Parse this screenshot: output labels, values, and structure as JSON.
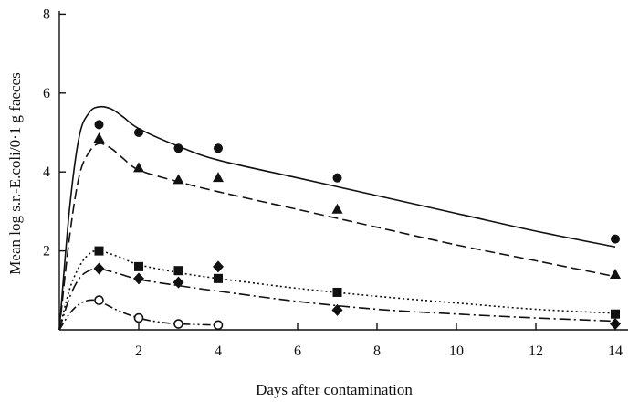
{
  "chart_data": {
    "type": "scatter",
    "title": "",
    "xlabel": "Days after contamination",
    "ylabel": "Mean log s.r.-E.coli/0·1 g faeces",
    "xlim": [
      0,
      14.5
    ],
    "ylim": [
      0,
      8
    ],
    "xticks": [
      2,
      4,
      6,
      8,
      10,
      12,
      14
    ],
    "yticks": [
      2,
      4,
      6,
      8
    ],
    "grid": false,
    "legend": "none",
    "series": [
      {
        "marker": "filled-circle",
        "line_style": "solid",
        "points": [
          [
            1,
            5.2
          ],
          [
            2,
            5.0
          ],
          [
            3,
            4.6
          ],
          [
            4,
            4.6
          ],
          [
            7,
            3.85
          ],
          [
            14,
            2.3
          ]
        ],
        "fit_curve": [
          [
            0,
            0
          ],
          [
            0.25,
            3.0
          ],
          [
            0.5,
            4.9
          ],
          [
            0.75,
            5.5
          ],
          [
            1,
            5.65
          ],
          [
            1.3,
            5.6
          ],
          [
            1.6,
            5.4
          ],
          [
            2,
            5.1
          ],
          [
            3,
            4.65
          ],
          [
            4,
            4.3
          ],
          [
            6,
            3.85
          ],
          [
            8,
            3.4
          ],
          [
            10,
            2.95
          ],
          [
            12,
            2.5
          ],
          [
            14,
            2.1
          ]
        ]
      },
      {
        "marker": "filled-triangle",
        "line_style": "dashed",
        "points": [
          [
            1,
            4.85
          ],
          [
            2,
            4.1
          ],
          [
            3,
            3.8
          ],
          [
            4,
            3.85
          ],
          [
            7,
            3.05
          ],
          [
            14,
            1.4
          ]
        ],
        "fit_curve": [
          [
            0,
            0
          ],
          [
            0.25,
            2.3
          ],
          [
            0.5,
            3.9
          ],
          [
            0.75,
            4.5
          ],
          [
            1,
            4.72
          ],
          [
            1.3,
            4.6
          ],
          [
            1.6,
            4.35
          ],
          [
            2,
            4.05
          ],
          [
            3,
            3.75
          ],
          [
            4,
            3.5
          ],
          [
            6,
            3.05
          ],
          [
            8,
            2.6
          ],
          [
            10,
            2.15
          ],
          [
            12,
            1.75
          ],
          [
            14,
            1.35
          ]
        ]
      },
      {
        "marker": "filled-square",
        "line_style": "dotted",
        "points": [
          [
            1,
            2.0
          ],
          [
            2,
            1.6
          ],
          [
            3,
            1.5
          ],
          [
            4,
            1.3
          ],
          [
            7,
            0.95
          ],
          [
            14,
            0.4
          ]
        ],
        "fit_curve": [
          [
            0,
            0
          ],
          [
            0.25,
            1.0
          ],
          [
            0.5,
            1.6
          ],
          [
            0.75,
            1.92
          ],
          [
            1,
            2.0
          ],
          [
            1.5,
            1.85
          ],
          [
            2,
            1.65
          ],
          [
            3,
            1.45
          ],
          [
            4,
            1.3
          ],
          [
            6,
            1.05
          ],
          [
            8,
            0.85
          ],
          [
            10,
            0.68
          ],
          [
            12,
            0.52
          ],
          [
            14,
            0.42
          ]
        ]
      },
      {
        "marker": "filled-diamond",
        "line_style": "dash-dot",
        "points": [
          [
            1,
            1.55
          ],
          [
            2,
            1.3
          ],
          [
            3,
            1.2
          ],
          [
            4,
            1.6
          ],
          [
            7,
            0.5
          ],
          [
            14,
            0.15
          ]
        ],
        "fit_curve": [
          [
            0,
            0
          ],
          [
            0.25,
            0.8
          ],
          [
            0.5,
            1.3
          ],
          [
            0.75,
            1.5
          ],
          [
            1,
            1.55
          ],
          [
            1.5,
            1.42
          ],
          [
            2,
            1.28
          ],
          [
            3,
            1.12
          ],
          [
            4,
            0.98
          ],
          [
            6,
            0.72
          ],
          [
            8,
            0.52
          ],
          [
            10,
            0.4
          ],
          [
            12,
            0.3
          ],
          [
            14,
            0.22
          ]
        ]
      },
      {
        "marker": "open-circle",
        "line_style": "dash-dot-dot",
        "points": [
          [
            1,
            0.75
          ],
          [
            2,
            0.3
          ],
          [
            3,
            0.15
          ],
          [
            4,
            0.12
          ]
        ],
        "fit_curve": [
          [
            0,
            0
          ],
          [
            0.25,
            0.4
          ],
          [
            0.5,
            0.65
          ],
          [
            0.75,
            0.75
          ],
          [
            1,
            0.72
          ],
          [
            1.5,
            0.48
          ],
          [
            2,
            0.3
          ],
          [
            2.5,
            0.2
          ],
          [
            3,
            0.15
          ],
          [
            4,
            0.12
          ]
        ]
      }
    ]
  }
}
